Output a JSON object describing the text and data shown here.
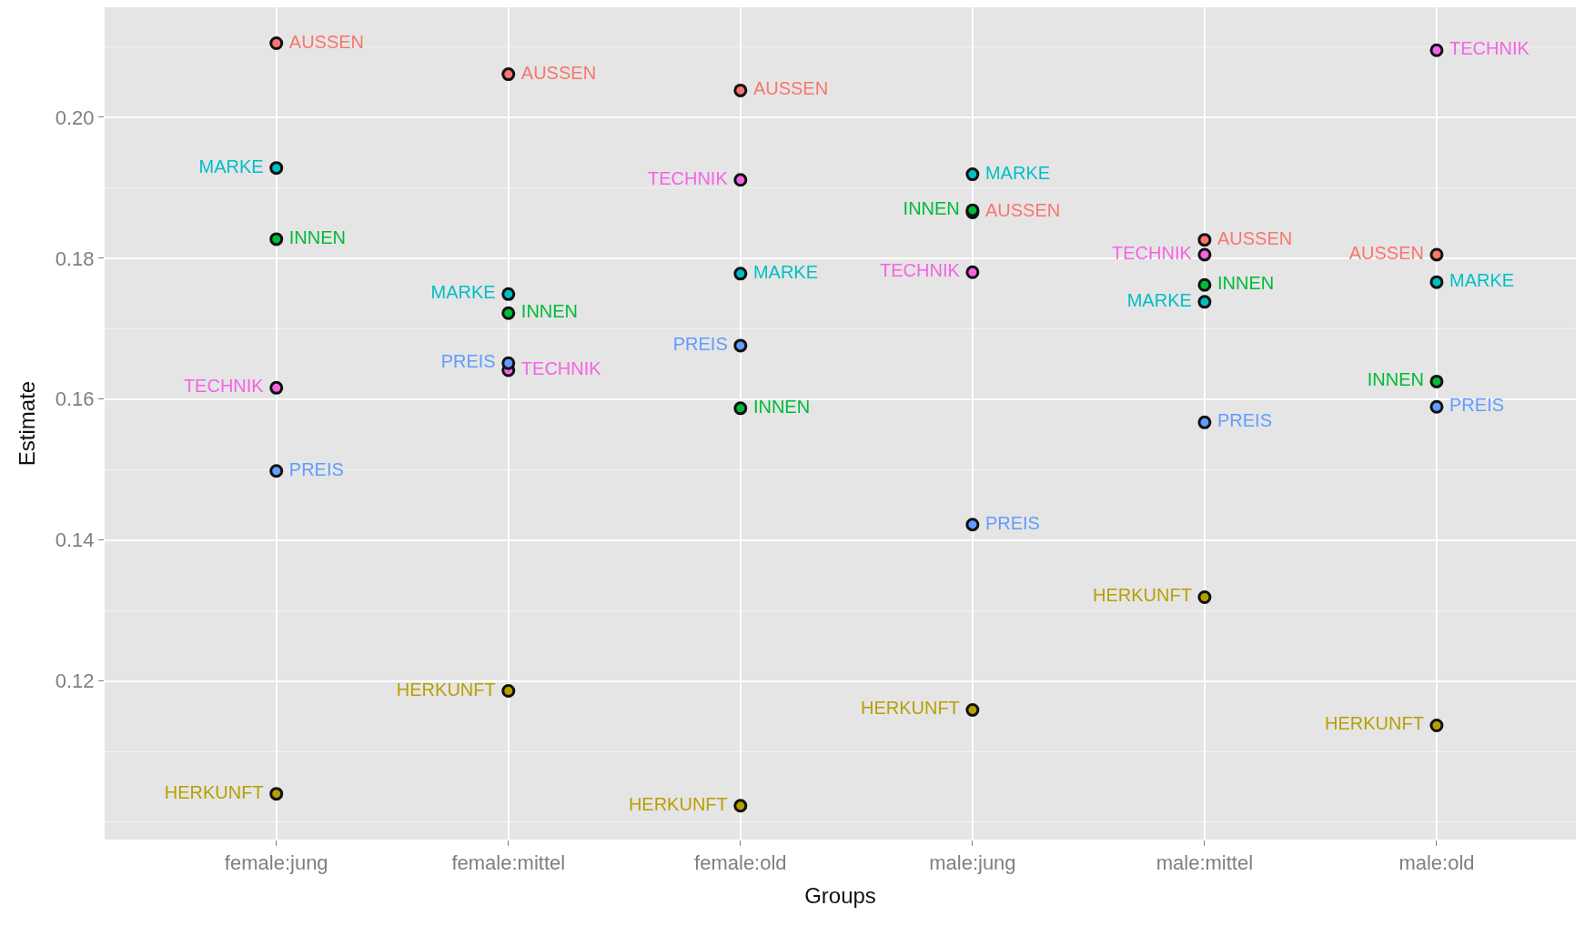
{
  "chart_data": {
    "type": "scatter",
    "xlabel": "Groups",
    "ylabel": "Estimate",
    "categories": [
      "female:jung",
      "female:mittel",
      "female:old",
      "male:jung",
      "male:mittel",
      "male:old"
    ],
    "series": [
      {
        "name": "AUSSEN",
        "color": "#f8766d",
        "values": [
          0.2105,
          0.2061,
          0.2038,
          0.1865,
          0.1826,
          0.1805
        ]
      },
      {
        "name": "MARKE",
        "color": "#00bfc4",
        "values": [
          0.1928,
          0.1749,
          0.1778,
          0.1919,
          0.1738,
          0.1766
        ]
      },
      {
        "name": "INNEN",
        "color": "#00ba38",
        "values": [
          0.1827,
          0.1722,
          0.1587,
          0.1868,
          0.1762,
          0.1625
        ]
      },
      {
        "name": "TECHNIK",
        "color": "#f564e3",
        "values": [
          0.1616,
          0.1641,
          0.1911,
          0.178,
          0.1805,
          0.2095
        ]
      },
      {
        "name": "PREIS",
        "color": "#619cff",
        "values": [
          0.1498,
          0.1651,
          0.1676,
          0.1422,
          0.1567,
          0.1589
        ]
      },
      {
        "name": "HERKUNFT",
        "color": "#b79f00",
        "values": [
          0.104,
          0.1186,
          0.1023,
          0.1159,
          0.1319,
          0.1137
        ]
      }
    ],
    "ylim": [
      0.0975,
      0.2156
    ],
    "yticks": [
      0.12,
      0.14,
      0.16,
      0.18,
      {
        "value": 0.2,
        "label": "0.20"
      }
    ],
    "grid": true,
    "legend": false,
    "marker": "circle"
  }
}
